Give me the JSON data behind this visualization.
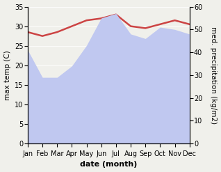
{
  "months": [
    "Jan",
    "Feb",
    "Mar",
    "Apr",
    "May",
    "Jun",
    "Jul",
    "Aug",
    "Sep",
    "Oct",
    "Nov",
    "Dec"
  ],
  "max_temp": [
    28.5,
    27.5,
    28.5,
    30.0,
    31.5,
    32.0,
    33.0,
    30.0,
    29.5,
    30.5,
    31.5,
    30.5
  ],
  "precipitation": [
    41,
    29,
    29,
    34,
    43,
    55,
    57,
    48,
    46,
    51,
    50,
    48
  ],
  "temp_color": "#cc4444",
  "precip_fill_color": "#c0c8f0",
  "temp_ylim": [
    0,
    35
  ],
  "precip_ylim": [
    0,
    60
  ],
  "temp_yticks": [
    0,
    5,
    10,
    15,
    20,
    25,
    30,
    35
  ],
  "precip_yticks": [
    0,
    10,
    20,
    30,
    40,
    50,
    60
  ],
  "xlabel": "date (month)",
  "ylabel_left": "max temp (C)",
  "ylabel_right": "med. precipitation (kg/m2)",
  "fig_width": 3.18,
  "fig_height": 2.47,
  "dpi": 100,
  "bg_color": "#f0f0eb",
  "temp_linewidth": 1.8,
  "xlabel_fontsize": 8,
  "ylabel_fontsize": 7.5,
  "tick_fontsize": 7
}
